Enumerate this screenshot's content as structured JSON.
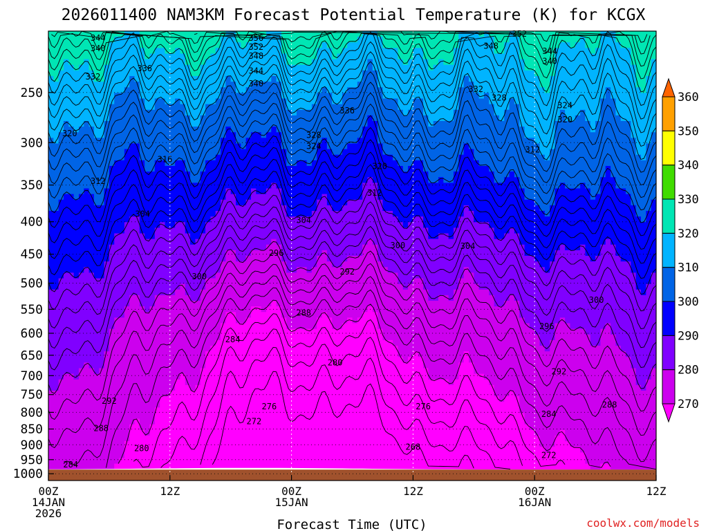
{
  "chart_data": {
    "type": "heatmap",
    "title": "2026011400 NAM3KM Forecast Potential Temperature (K) for KCGX",
    "xlabel": "Forecast Time (UTC)",
    "ylabel": "",
    "credit": "coolwx.com/models",
    "x_ticks": [
      {
        "hours": 0,
        "lines": [
          "00Z",
          "14JAN",
          "2026"
        ]
      },
      {
        "hours": 12,
        "lines": [
          "12Z"
        ]
      },
      {
        "hours": 24,
        "lines": [
          "00Z",
          "15JAN"
        ]
      },
      {
        "hours": 36,
        "lines": [
          "12Z"
        ]
      },
      {
        "hours": 48,
        "lines": [
          "00Z",
          "16JAN"
        ]
      },
      {
        "hours": 60,
        "lines": [
          "12Z"
        ]
      }
    ],
    "xlim_hours": [
      0,
      60
    ],
    "y_ticks": [
      250,
      300,
      350,
      400,
      450,
      500,
      550,
      600,
      650,
      700,
      750,
      800,
      850,
      900,
      950,
      1000
    ],
    "ylim_hPa": [
      200,
      1025
    ],
    "y_scale": "log-pressure",
    "colorbar": {
      "levels": [
        270,
        280,
        290,
        300,
        310,
        320,
        330,
        340,
        350,
        360
      ],
      "colors": [
        "#ff00ff",
        "#cc00ee",
        "#8000ff",
        "#0000ff",
        "#0064e6",
        "#00b4ff",
        "#00e6b4",
        "#40dc00",
        "#ffff00",
        "#ffa000",
        "#ff6400"
      ]
    },
    "ground_color": "#a0522d",
    "contour_interval_K": 2,
    "contour_labels": [
      {
        "value": "344",
        "h": 4.9,
        "p": 205
      },
      {
        "value": "340",
        "h": 4.9,
        "p": 213
      },
      {
        "value": "336",
        "h": 9.5,
        "p": 229
      },
      {
        "value": "332",
        "h": 4.4,
        "p": 236
      },
      {
        "value": "320",
        "h": 2.1,
        "p": 290
      },
      {
        "value": "316",
        "h": 11.5,
        "p": 319
      },
      {
        "value": "312",
        "h": 4.9,
        "p": 345
      },
      {
        "value": "304",
        "h": 9.3,
        "p": 389
      },
      {
        "value": "356",
        "h": 20.5,
        "p": 205
      },
      {
        "value": "352",
        "h": 20.5,
        "p": 212
      },
      {
        "value": "348",
        "h": 20.5,
        "p": 219
      },
      {
        "value": "344",
        "h": 20.5,
        "p": 231
      },
      {
        "value": "340",
        "h": 20.5,
        "p": 242
      },
      {
        "value": "336",
        "h": 29.5,
        "p": 267
      },
      {
        "value": "328",
        "h": 26.2,
        "p": 292
      },
      {
        "value": "324",
        "h": 26.2,
        "p": 304
      },
      {
        "value": "320",
        "h": 32.7,
        "p": 327
      },
      {
        "value": "312",
        "h": 32.2,
        "p": 360
      },
      {
        "value": "304",
        "h": 25.2,
        "p": 398
      },
      {
        "value": "300",
        "h": 34.5,
        "p": 436
      },
      {
        "value": "296",
        "h": 22.5,
        "p": 448
      },
      {
        "value": "292",
        "h": 29.5,
        "p": 480
      },
      {
        "value": "300",
        "h": 14.9,
        "p": 488
      },
      {
        "value": "288",
        "h": 25.2,
        "p": 557
      },
      {
        "value": "284",
        "h": 18.2,
        "p": 614
      },
      {
        "value": "280",
        "h": 28.3,
        "p": 668
      },
      {
        "value": "292",
        "h": 6.0,
        "p": 768
      },
      {
        "value": "288",
        "h": 5.2,
        "p": 848
      },
      {
        "value": "276",
        "h": 21.8,
        "p": 783
      },
      {
        "value": "272",
        "h": 20.3,
        "p": 827
      },
      {
        "value": "280",
        "h": 9.2,
        "p": 912
      },
      {
        "value": "284",
        "h": 2.2,
        "p": 968
      },
      {
        "value": "268",
        "h": 36.0,
        "p": 907
      },
      {
        "value": "276",
        "h": 37.0,
        "p": 783
      },
      {
        "value": "352",
        "h": 46.5,
        "p": 202
      },
      {
        "value": "348",
        "h": 43.7,
        "p": 211
      },
      {
        "value": "344",
        "h": 49.5,
        "p": 215
      },
      {
        "value": "340",
        "h": 49.5,
        "p": 223
      },
      {
        "value": "332",
        "h": 42.2,
        "p": 247
      },
      {
        "value": "328",
        "h": 44.5,
        "p": 255
      },
      {
        "value": "324",
        "h": 51.0,
        "p": 262
      },
      {
        "value": "320",
        "h": 51.0,
        "p": 276
      },
      {
        "value": "312",
        "h": 47.8,
        "p": 308
      },
      {
        "value": "304",
        "h": 41.4,
        "p": 437
      },
      {
        "value": "300",
        "h": 54.1,
        "p": 532
      },
      {
        "value": "296",
        "h": 49.2,
        "p": 585
      },
      {
        "value": "292",
        "h": 50.4,
        "p": 690
      },
      {
        "value": "288",
        "h": 55.4,
        "p": 778
      },
      {
        "value": "284",
        "h": 49.4,
        "p": 805
      },
      {
        "value": "272",
        "h": 49.4,
        "p": 935
      }
    ]
  }
}
